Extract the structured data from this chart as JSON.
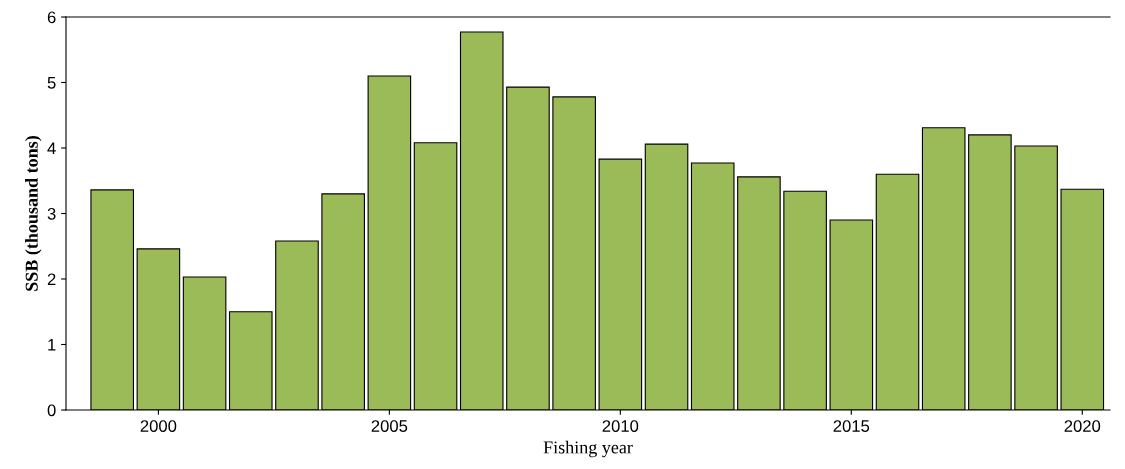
{
  "chart_data": {
    "type": "bar",
    "xlabel": "Fishing year",
    "ylabel": "SSB (thousand tons)",
    "x": [
      1999,
      2000,
      2001,
      2002,
      2003,
      2004,
      2005,
      2006,
      2007,
      2008,
      2009,
      2010,
      2011,
      2012,
      2013,
      2014,
      2015,
      2016,
      2017,
      2018,
      2019,
      2020
    ],
    "values": [
      3.36,
      2.46,
      2.03,
      1.5,
      2.58,
      3.3,
      5.1,
      4.08,
      5.77,
      4.93,
      4.78,
      3.83,
      4.06,
      3.77,
      3.56,
      3.34,
      2.9,
      3.6,
      4.31,
      4.2,
      4.03,
      3.37
    ],
    "color": "#9bbb59",
    "xlim": [
      1998,
      2020.6
    ],
    "xticks": [
      2000,
      2005,
      2010,
      2015,
      2020
    ],
    "ylim": [
      0,
      6
    ],
    "yticks": [
      0,
      1,
      2,
      3,
      4,
      5,
      6
    ],
    "grid": false,
    "legend": false
  }
}
